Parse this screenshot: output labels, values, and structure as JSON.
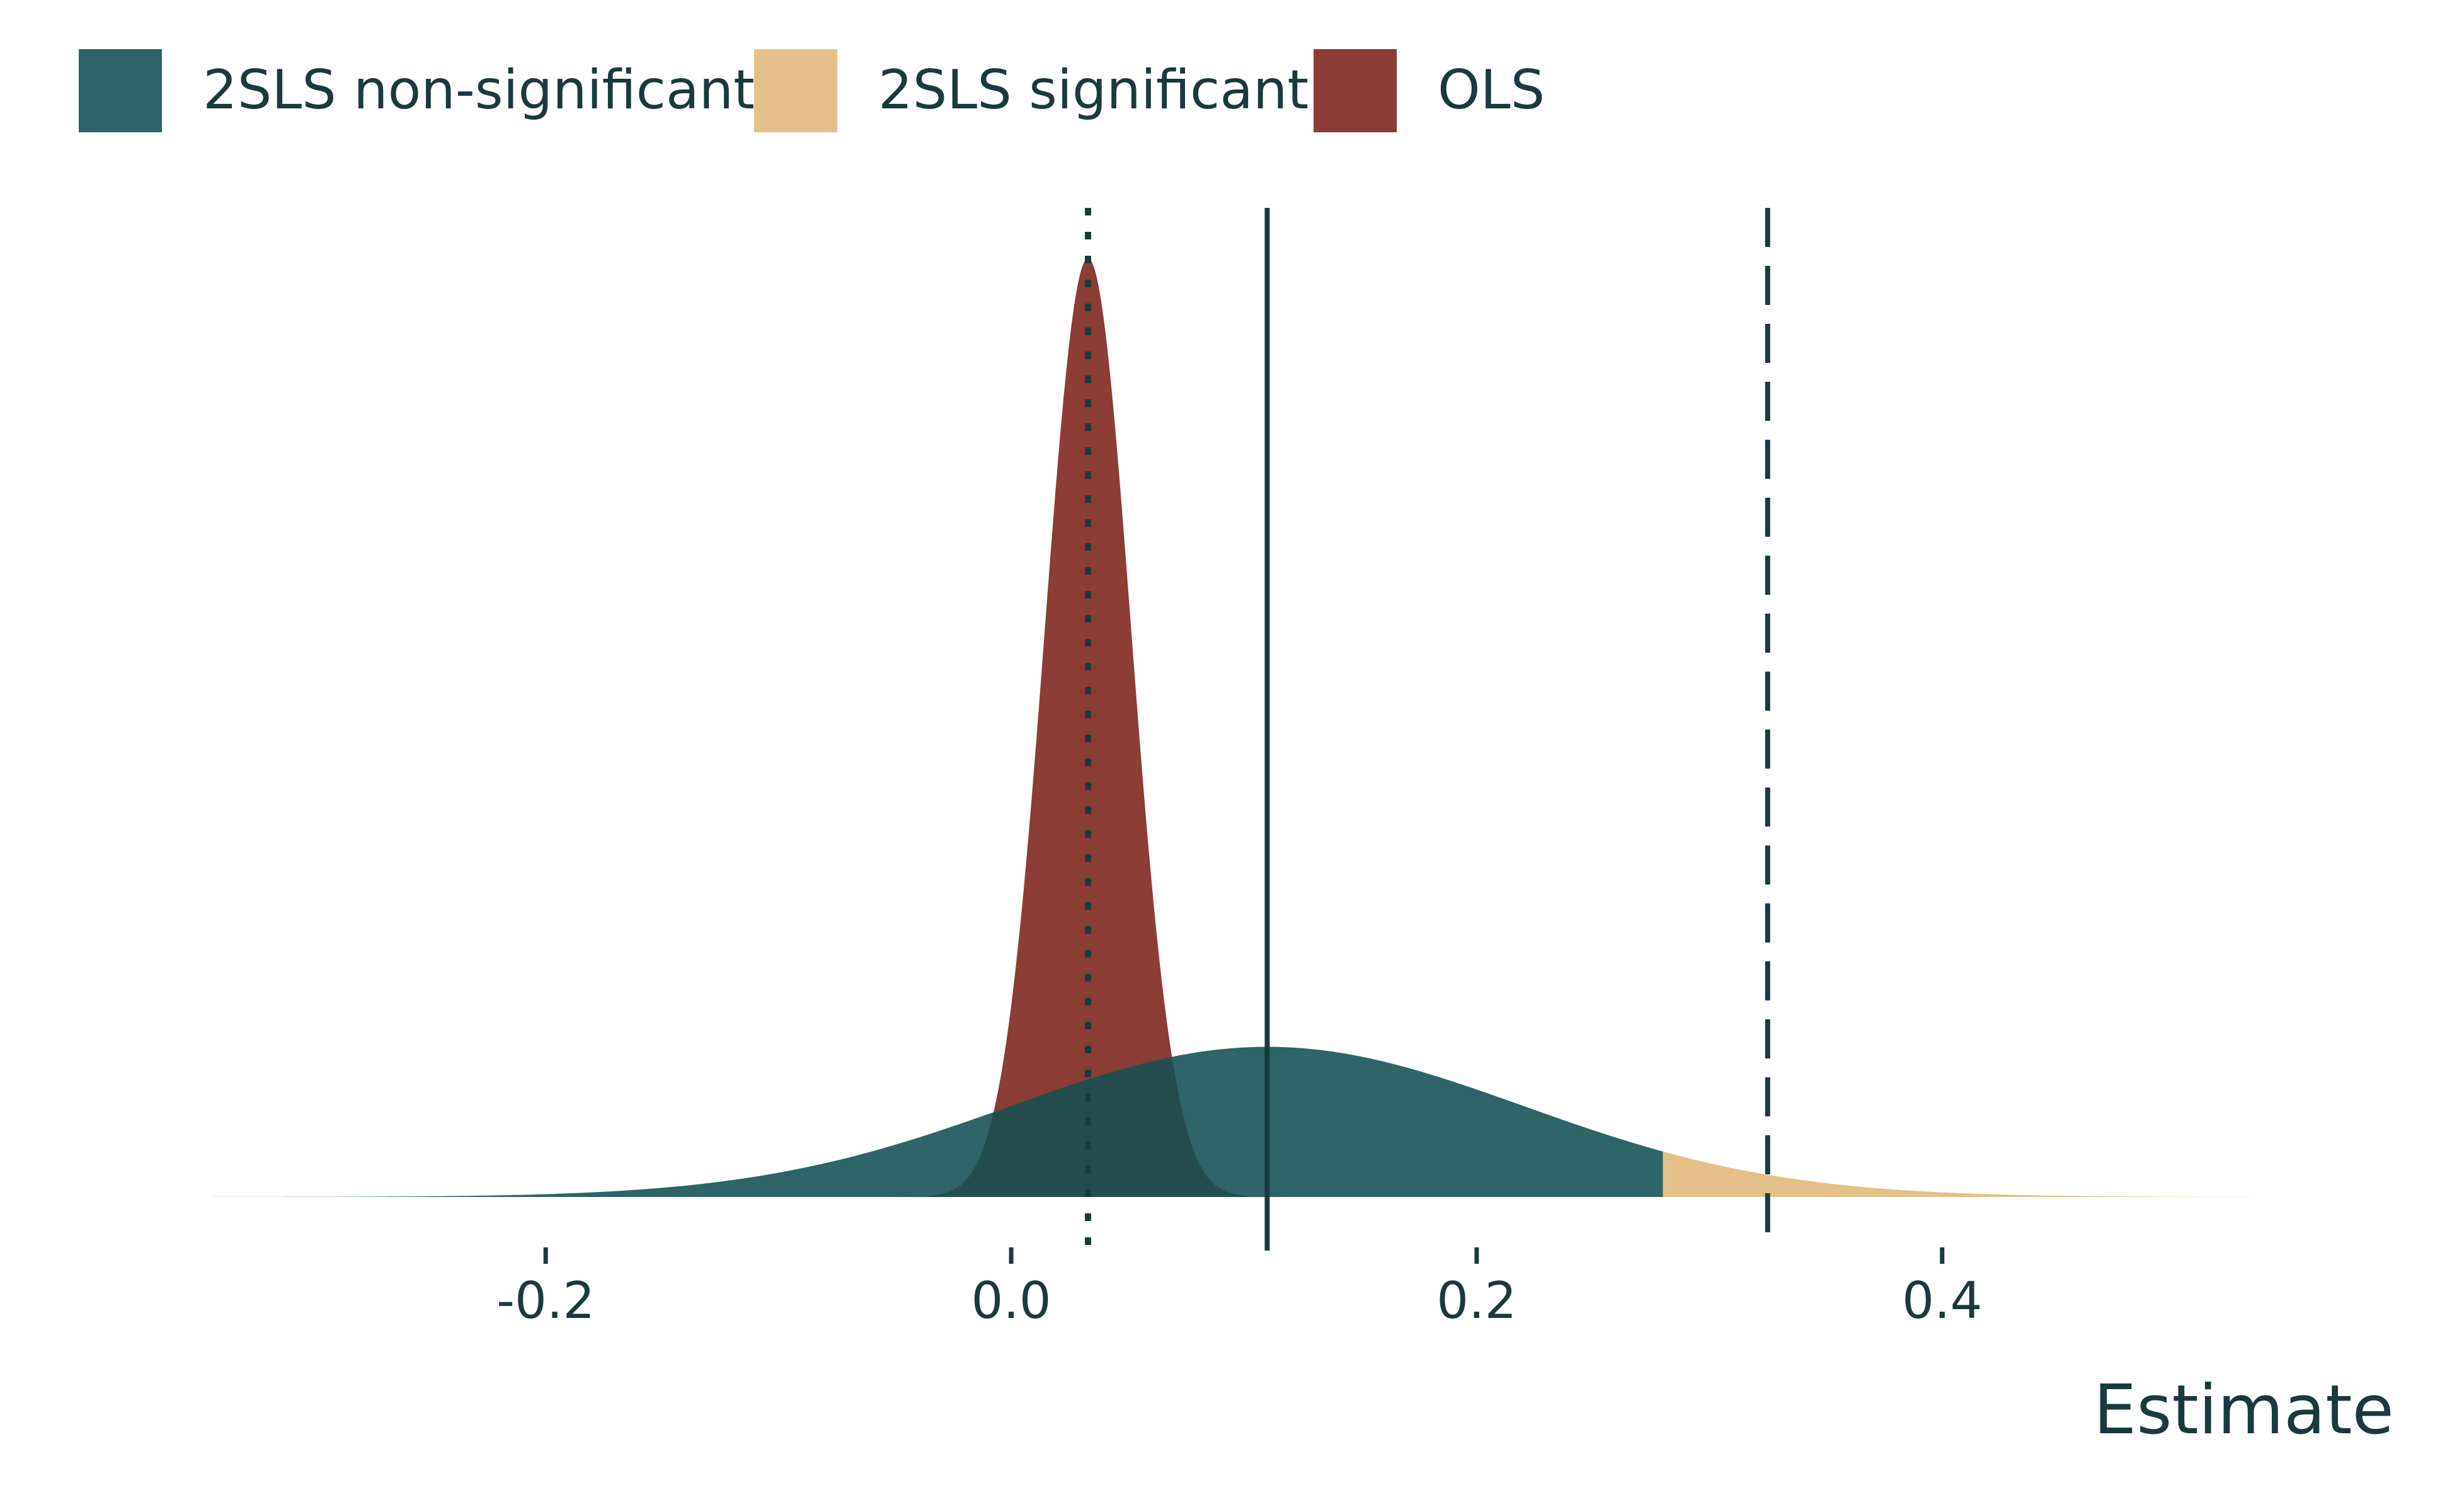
{
  "chart_data": {
    "type": "area",
    "title": "",
    "xlabel": "Estimate",
    "ylabel": "",
    "xlim": [
      -0.35,
      0.55
    ],
    "x_ticks": [
      -0.2,
      0.0,
      0.2,
      0.4
    ],
    "x_tick_labels": [
      "-0.2",
      "0.0",
      "0.2",
      "0.4"
    ],
    "grid": false,
    "legend_position": "top-left",
    "colors": {
      "tsls_nonsig": "#2e6566",
      "tsls_sig": "#e4c189",
      "ols": "#8b3d36",
      "overlap": "#244e4e",
      "ink": "#1b3a3e"
    },
    "series": [
      {
        "name": "2SLS non-significant",
        "distribution": "normal",
        "mean": 0.11,
        "sd": 0.11,
        "x_range": [
          -0.35,
          0.28
        ],
        "relative_peak_height": 0.16
      },
      {
        "name": "2SLS significant",
        "distribution": "normal",
        "mean": 0.11,
        "sd": 0.11,
        "x_range": [
          0.28,
          0.55
        ],
        "relative_peak_height": 0.16
      },
      {
        "name": "OLS",
        "distribution": "normal",
        "mean": 0.033,
        "sd": 0.0185,
        "relative_peak_height": 1.0
      }
    ],
    "reference_lines": [
      {
        "style": "dotted",
        "x": 0.033
      },
      {
        "style": "solid",
        "x": 0.11
      },
      {
        "style": "dashed",
        "x": 0.325
      }
    ]
  }
}
